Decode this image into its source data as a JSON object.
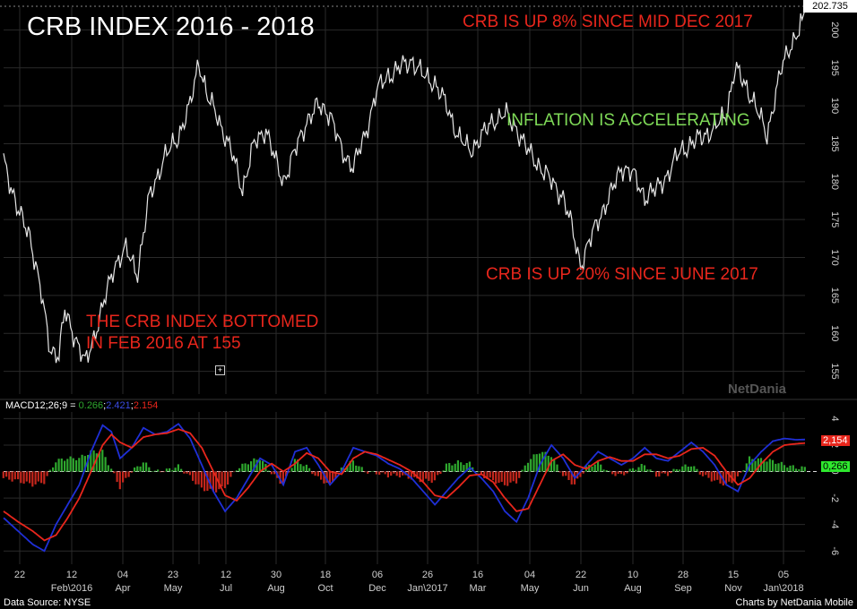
{
  "title": "CRB INDEX 2016 - 2018",
  "annotations": {
    "up8": "CRB IS UP 8% SINCE MID DEC 2017",
    "inflation": "INFLATION IS ACCELERATING",
    "up20": "CRB IS UP 20% SINCE JUNE 2017",
    "bottom_line1": "THE CRB INDEX BOTTOMED",
    "bottom_line2": "IN FEB 2016 AT 155"
  },
  "macd": {
    "label_prefix": "MACD12;26;9 =",
    "value_hist": "0.266",
    "value_macd": "2.421",
    "value_signal": "2.154",
    "badge_signal": "2,154",
    "badge_hist": "0,266"
  },
  "last_price": "202.735",
  "watermark": "NetDania",
  "footer": {
    "left": "Data Source: NYSE",
    "right": "Charts by NetDania Mobile"
  },
  "colors": {
    "price_line": "#e6e6e6",
    "macd_line": "#1f2fd6",
    "signal_line": "#e8261c",
    "hist_positive": "#2ea82e",
    "hist_negative": "#c4261c",
    "annotation_red": "#e8261c",
    "annotation_green": "#7ed957"
  },
  "chart_data": [
    {
      "type": "line",
      "name": "CRB Index",
      "y_ticks": [
        "155",
        "160",
        "165",
        "170",
        "175",
        "180",
        "185",
        "190",
        "195",
        "200"
      ],
      "ylim": [
        152,
        203
      ],
      "x_tick_labels": [
        {
          "top": "22",
          "bottom": ""
        },
        {
          "top": "",
          "bottom": "Feb\\2016"
        },
        {
          "top": "12",
          "bottom": ""
        },
        {
          "top": "04",
          "bottom": "Apr"
        },
        {
          "top": "23",
          "bottom": "May"
        },
        {
          "top": "",
          "bottom": ""
        },
        {
          "top": "12",
          "bottom": "Jul"
        },
        {
          "top": "30",
          "bottom": "Aug"
        },
        {
          "top": "18",
          "bottom": "Oct"
        },
        {
          "top": "06",
          "bottom": "Dec"
        },
        {
          "top": "26",
          "bottom": "Jan\\2017"
        },
        {
          "top": "16",
          "bottom": "Mar"
        },
        {
          "top": "04",
          "bottom": "May"
        },
        {
          "top": "22",
          "bottom": "Jun"
        },
        {
          "top": "10",
          "bottom": "Aug"
        },
        {
          "top": "28",
          "bottom": "Sep"
        },
        {
          "top": "15",
          "bottom": "Nov"
        },
        {
          "top": "05",
          "bottom": "Jan\\2018"
        }
      ],
      "anchors": [
        {
          "t": 0,
          "v": 183
        },
        {
          "t": 5,
          "v": 176
        },
        {
          "t": 9,
          "v": 173
        },
        {
          "t": 13,
          "v": 165
        },
        {
          "t": 16,
          "v": 158
        },
        {
          "t": 19,
          "v": 157
        },
        {
          "t": 21,
          "v": 163
        },
        {
          "t": 24,
          "v": 160
        },
        {
          "t": 28,
          "v": 156
        },
        {
          "t": 33,
          "v": 162
        },
        {
          "t": 38,
          "v": 169
        },
        {
          "t": 42,
          "v": 171
        },
        {
          "t": 46,
          "v": 168
        },
        {
          "t": 50,
          "v": 178
        },
        {
          "t": 55,
          "v": 183
        },
        {
          "t": 60,
          "v": 186
        },
        {
          "t": 64,
          "v": 190
        },
        {
          "t": 67,
          "v": 196
        },
        {
          "t": 70,
          "v": 191
        },
        {
          "t": 73,
          "v": 189
        },
        {
          "t": 76,
          "v": 186
        },
        {
          "t": 79,
          "v": 183
        },
        {
          "t": 82,
          "v": 179
        },
        {
          "t": 86,
          "v": 185
        },
        {
          "t": 90,
          "v": 187
        },
        {
          "t": 93,
          "v": 183
        },
        {
          "t": 96,
          "v": 180
        },
        {
          "t": 100,
          "v": 184
        },
        {
          "t": 104,
          "v": 188
        },
        {
          "t": 108,
          "v": 190
        },
        {
          "t": 112,
          "v": 189
        },
        {
          "t": 116,
          "v": 184
        },
        {
          "t": 120,
          "v": 182
        },
        {
          "t": 124,
          "v": 186
        },
        {
          "t": 128,
          "v": 192
        },
        {
          "t": 132,
          "v": 194
        },
        {
          "t": 136,
          "v": 195
        },
        {
          "t": 140,
          "v": 196
        },
        {
          "t": 144,
          "v": 194
        },
        {
          "t": 148,
          "v": 193
        },
        {
          "t": 152,
          "v": 190
        },
        {
          "t": 156,
          "v": 186
        },
        {
          "t": 160,
          "v": 184
        },
        {
          "t": 164,
          "v": 186
        },
        {
          "t": 168,
          "v": 188
        },
        {
          "t": 172,
          "v": 189
        },
        {
          "t": 176,
          "v": 187
        },
        {
          "t": 180,
          "v": 184
        },
        {
          "t": 184,
          "v": 182
        },
        {
          "t": 188,
          "v": 180
        },
        {
          "t": 192,
          "v": 178
        },
        {
          "t": 195,
          "v": 174
        },
        {
          "t": 198,
          "v": 169
        },
        {
          "t": 201,
          "v": 172
        },
        {
          "t": 204,
          "v": 175
        },
        {
          "t": 208,
          "v": 178
        },
        {
          "t": 212,
          "v": 182
        },
        {
          "t": 216,
          "v": 181
        },
        {
          "t": 220,
          "v": 178
        },
        {
          "t": 224,
          "v": 179
        },
        {
          "t": 228,
          "v": 181
        },
        {
          "t": 232,
          "v": 184
        },
        {
          "t": 236,
          "v": 185
        },
        {
          "t": 240,
          "v": 186
        },
        {
          "t": 244,
          "v": 187
        },
        {
          "t": 248,
          "v": 189
        },
        {
          "t": 251,
          "v": 195
        },
        {
          "t": 254,
          "v": 193
        },
        {
          "t": 257,
          "v": 191
        },
        {
          "t": 260,
          "v": 188
        },
        {
          "t": 262,
          "v": 186
        },
        {
          "t": 264,
          "v": 190
        },
        {
          "t": 267,
          "v": 195
        },
        {
          "t": 270,
          "v": 198
        },
        {
          "t": 273,
          "v": 200
        },
        {
          "t": 275,
          "v": 202.7
        }
      ]
    },
    {
      "type": "line",
      "name": "MACD12;26;9",
      "y_ticks": [
        "-6",
        "-4",
        "-2",
        "0",
        "2",
        "4"
      ],
      "ylim": [
        -7,
        4.5
      ],
      "macd_anchors": [
        {
          "t": 0,
          "v": -3.5
        },
        {
          "t": 5,
          "v": -4.5
        },
        {
          "t": 10,
          "v": -5.5
        },
        {
          "t": 14,
          "v": -6.0
        },
        {
          "t": 18,
          "v": -4.0
        },
        {
          "t": 22,
          "v": -2.5
        },
        {
          "t": 26,
          "v": -1.0
        },
        {
          "t": 30,
          "v": 1.5
        },
        {
          "t": 34,
          "v": 3.5
        },
        {
          "t": 37,
          "v": 3.0
        },
        {
          "t": 40,
          "v": 1.0
        },
        {
          "t": 44,
          "v": 1.8
        },
        {
          "t": 48,
          "v": 3.3
        },
        {
          "t": 52,
          "v": 2.8
        },
        {
          "t": 56,
          "v": 3.0
        },
        {
          "t": 60,
          "v": 3.6
        },
        {
          "t": 64,
          "v": 2.5
        },
        {
          "t": 68,
          "v": 0.5
        },
        {
          "t": 72,
          "v": -1.5
        },
        {
          "t": 76,
          "v": -3.0
        },
        {
          "t": 80,
          "v": -2.0
        },
        {
          "t": 84,
          "v": -0.5
        },
        {
          "t": 88,
          "v": 1.0
        },
        {
          "t": 92,
          "v": 0.5
        },
        {
          "t": 96,
          "v": -1.0
        },
        {
          "t": 100,
          "v": 1.5
        },
        {
          "t": 104,
          "v": 1.8
        },
        {
          "t": 108,
          "v": 0.5
        },
        {
          "t": 112,
          "v": -1.0
        },
        {
          "t": 116,
          "v": 0.0
        },
        {
          "t": 120,
          "v": 1.8
        },
        {
          "t": 124,
          "v": 1.5
        },
        {
          "t": 128,
          "v": 1.2
        },
        {
          "t": 132,
          "v": 0.6
        },
        {
          "t": 136,
          "v": 0.2
        },
        {
          "t": 140,
          "v": -0.5
        },
        {
          "t": 144,
          "v": -1.5
        },
        {
          "t": 148,
          "v": -2.5
        },
        {
          "t": 152,
          "v": -1.5
        },
        {
          "t": 156,
          "v": -0.5
        },
        {
          "t": 160,
          "v": 0.3
        },
        {
          "t": 164,
          "v": -0.5
        },
        {
          "t": 168,
          "v": -1.5
        },
        {
          "t": 172,
          "v": -3.0
        },
        {
          "t": 176,
          "v": -3.8
        },
        {
          "t": 180,
          "v": -2.0
        },
        {
          "t": 184,
          "v": 0.5
        },
        {
          "t": 188,
          "v": 2.0
        },
        {
          "t": 192,
          "v": 1.0
        },
        {
          "t": 196,
          "v": -0.5
        },
        {
          "t": 200,
          "v": 0.5
        },
        {
          "t": 204,
          "v": 1.5
        },
        {
          "t": 208,
          "v": 1.0
        },
        {
          "t": 212,
          "v": 0.5
        },
        {
          "t": 216,
          "v": 1.0
        },
        {
          "t": 220,
          "v": 1.8
        },
        {
          "t": 224,
          "v": 1.0
        },
        {
          "t": 228,
          "v": 0.8
        },
        {
          "t": 232,
          "v": 1.5
        },
        {
          "t": 236,
          "v": 2.2
        },
        {
          "t": 240,
          "v": 1.5
        },
        {
          "t": 244,
          "v": 0.5
        },
        {
          "t": 248,
          "v": -1.0
        },
        {
          "t": 252,
          "v": -1.5
        },
        {
          "t": 256,
          "v": 0.5
        },
        {
          "t": 260,
          "v": 1.5
        },
        {
          "t": 264,
          "v": 2.3
        },
        {
          "t": 268,
          "v": 2.5
        },
        {
          "t": 272,
          "v": 2.4
        },
        {
          "t": 275,
          "v": 2.42
        }
      ],
      "signal_anchors": [
        {
          "t": 0,
          "v": -3.0
        },
        {
          "t": 5,
          "v": -3.8
        },
        {
          "t": 10,
          "v": -4.5
        },
        {
          "t": 14,
          "v": -5.2
        },
        {
          "t": 18,
          "v": -4.8
        },
        {
          "t": 22,
          "v": -3.5
        },
        {
          "t": 26,
          "v": -2.0
        },
        {
          "t": 30,
          "v": 0.0
        },
        {
          "t": 34,
          "v": 2.0
        },
        {
          "t": 37,
          "v": 2.8
        },
        {
          "t": 40,
          "v": 2.2
        },
        {
          "t": 44,
          "v": 1.8
        },
        {
          "t": 48,
          "v": 2.6
        },
        {
          "t": 52,
          "v": 2.8
        },
        {
          "t": 56,
          "v": 2.9
        },
        {
          "t": 60,
          "v": 3.2
        },
        {
          "t": 64,
          "v": 2.9
        },
        {
          "t": 68,
          "v": 1.8
        },
        {
          "t": 72,
          "v": 0.0
        },
        {
          "t": 76,
          "v": -1.8
        },
        {
          "t": 80,
          "v": -2.2
        },
        {
          "t": 84,
          "v": -1.2
        },
        {
          "t": 88,
          "v": 0.0
        },
        {
          "t": 92,
          "v": 0.6
        },
        {
          "t": 96,
          "v": 0.0
        },
        {
          "t": 100,
          "v": 0.6
        },
        {
          "t": 104,
          "v": 1.4
        },
        {
          "t": 108,
          "v": 1.0
        },
        {
          "t": 112,
          "v": 0.0
        },
        {
          "t": 116,
          "v": -0.2
        },
        {
          "t": 120,
          "v": 1.0
        },
        {
          "t": 124,
          "v": 1.5
        },
        {
          "t": 128,
          "v": 1.3
        },
        {
          "t": 132,
          "v": 0.9
        },
        {
          "t": 136,
          "v": 0.5
        },
        {
          "t": 140,
          "v": 0.0
        },
        {
          "t": 144,
          "v": -0.8
        },
        {
          "t": 148,
          "v": -1.8
        },
        {
          "t": 152,
          "v": -2.0
        },
        {
          "t": 156,
          "v": -1.2
        },
        {
          "t": 160,
          "v": -0.3
        },
        {
          "t": 164,
          "v": -0.2
        },
        {
          "t": 168,
          "v": -0.8
        },
        {
          "t": 172,
          "v": -2.0
        },
        {
          "t": 176,
          "v": -3.0
        },
        {
          "t": 180,
          "v": -2.8
        },
        {
          "t": 184,
          "v": -1.0
        },
        {
          "t": 188,
          "v": 0.8
        },
        {
          "t": 192,
          "v": 1.3
        },
        {
          "t": 196,
          "v": 0.5
        },
        {
          "t": 200,
          "v": 0.2
        },
        {
          "t": 204,
          "v": 0.8
        },
        {
          "t": 208,
          "v": 1.1
        },
        {
          "t": 212,
          "v": 0.8
        },
        {
          "t": 216,
          "v": 0.8
        },
        {
          "t": 220,
          "v": 1.3
        },
        {
          "t": 224,
          "v": 1.3
        },
        {
          "t": 228,
          "v": 1.0
        },
        {
          "t": 232,
          "v": 1.2
        },
        {
          "t": 236,
          "v": 1.7
        },
        {
          "t": 240,
          "v": 1.8
        },
        {
          "t": 244,
          "v": 1.2
        },
        {
          "t": 248,
          "v": 0.0
        },
        {
          "t": 252,
          "v": -1.0
        },
        {
          "t": 256,
          "v": -0.5
        },
        {
          "t": 260,
          "v": 0.6
        },
        {
          "t": 264,
          "v": 1.5
        },
        {
          "t": 268,
          "v": 2.0
        },
        {
          "t": 272,
          "v": 2.1
        },
        {
          "t": 275,
          "v": 2.15
        }
      ]
    }
  ]
}
